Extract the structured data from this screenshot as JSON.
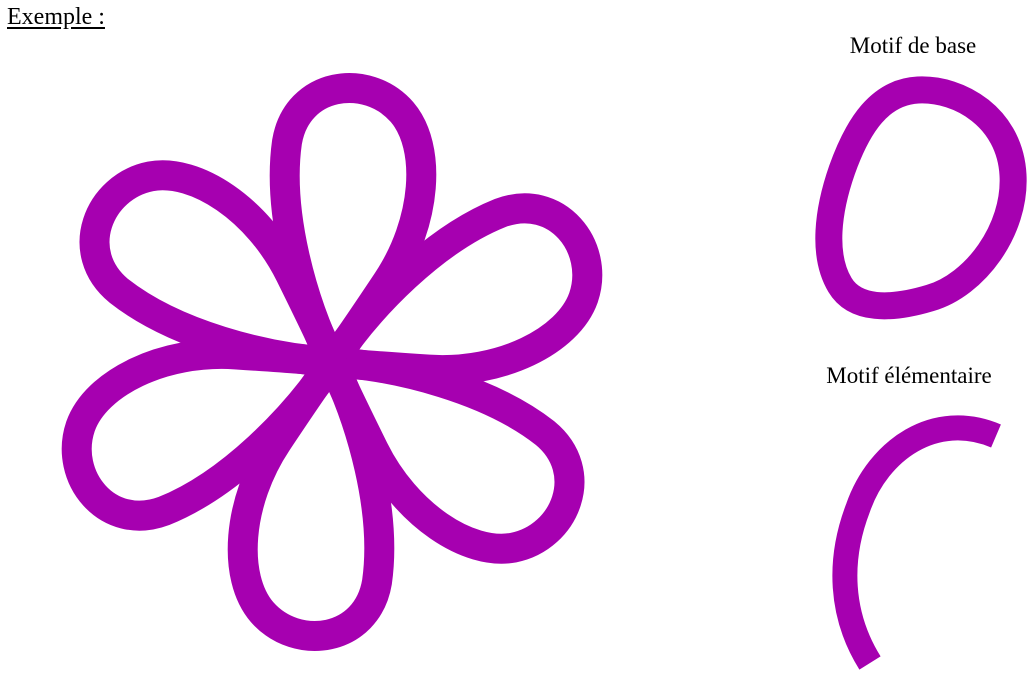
{
  "heading": "Exemple :",
  "captions": {
    "base": "Motif de base",
    "elementary": "Motif élémentaire"
  },
  "colors": {
    "stroke": "#a600b0",
    "background": "#ffffff",
    "text": "#000000"
  },
  "rosette": {
    "petal_count": 6,
    "rotation_step_deg": 60
  }
}
